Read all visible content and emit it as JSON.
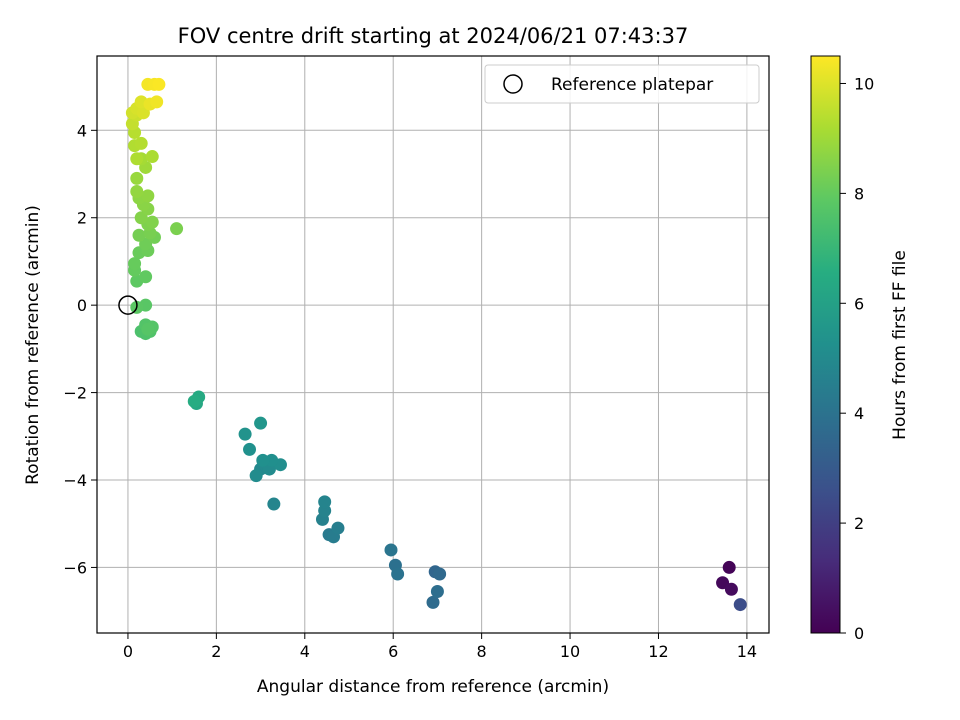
{
  "chart_data": {
    "type": "scatter",
    "title": "FOV centre drift starting at 2024/06/21 07:43:37",
    "xlabel": "Angular distance from reference (arcmin)",
    "ylabel": "Rotation from reference (arcmin)",
    "xlim": [
      -0.7,
      14.5
    ],
    "ylim": [
      -7.5,
      5.7
    ],
    "x_ticks": [
      "0",
      "2",
      "4",
      "6",
      "8",
      "10",
      "12",
      "14"
    ],
    "x_tick_values": [
      0,
      2,
      4,
      6,
      8,
      10,
      12,
      14
    ],
    "y_ticks": [
      "−6",
      "−4",
      "−2",
      "0",
      "2",
      "4"
    ],
    "y_tick_values": [
      -6,
      -4,
      -2,
      0,
      2,
      4
    ],
    "grid": true,
    "legend_position": "top-right",
    "colorbar": {
      "label": "Hours from first FF file",
      "range": [
        0,
        10.5
      ],
      "ticks": [
        "0",
        "2",
        "4",
        "6",
        "8",
        "10"
      ],
      "tick_values": [
        0,
        2,
        4,
        6,
        8,
        10
      ],
      "colormap": "viridis"
    },
    "reference": {
      "name": "Reference platepar",
      "x": 0,
      "y": 0
    },
    "points": [
      [
        13.6,
        -6.0,
        0.1
      ],
      [
        13.45,
        -6.35,
        0.2
      ],
      [
        13.65,
        -6.5,
        0.3
      ],
      [
        13.85,
        -6.85,
        2.5
      ],
      [
        6.95,
        -6.1,
        3.5
      ],
      [
        7.05,
        -6.15,
        3.6
      ],
      [
        6.9,
        -6.8,
        3.7
      ],
      [
        7.0,
        -6.55,
        3.8
      ],
      [
        6.05,
        -5.95,
        3.9
      ],
      [
        6.1,
        -6.15,
        4.0
      ],
      [
        5.95,
        -5.6,
        4.1
      ],
      [
        4.55,
        -5.25,
        4.3
      ],
      [
        4.65,
        -5.3,
        4.4
      ],
      [
        4.75,
        -5.1,
        4.5
      ],
      [
        4.4,
        -4.9,
        4.6
      ],
      [
        4.45,
        -4.7,
        4.7
      ],
      [
        4.45,
        -4.5,
        4.75
      ],
      [
        3.3,
        -4.55,
        4.8
      ],
      [
        3.0,
        -3.75,
        4.9
      ],
      [
        3.1,
        -3.65,
        5.0
      ],
      [
        3.2,
        -3.75,
        5.05
      ],
      [
        2.9,
        -3.9,
        5.1
      ],
      [
        3.45,
        -3.65,
        5.15
      ],
      [
        3.25,
        -3.55,
        5.2
      ],
      [
        3.05,
        -3.55,
        5.25
      ],
      [
        2.75,
        -3.3,
        5.3
      ],
      [
        2.65,
        -2.95,
        5.4
      ],
      [
        3.0,
        -2.7,
        5.5
      ],
      [
        1.55,
        -2.25,
        6.3
      ],
      [
        1.6,
        -2.1,
        6.4
      ],
      [
        1.5,
        -2.2,
        6.5
      ],
      [
        0.3,
        -0.6,
        7.5
      ],
      [
        0.4,
        -0.65,
        7.55
      ],
      [
        0.5,
        -0.6,
        7.6
      ],
      [
        0.4,
        -0.45,
        7.65
      ],
      [
        0.55,
        -0.5,
        7.7
      ],
      [
        0.45,
        -0.55,
        7.75
      ],
      [
        0.4,
        0.0,
        7.8
      ],
      [
        0.2,
        -0.05,
        7.85
      ],
      [
        0.2,
        0.55,
        7.9
      ],
      [
        0.4,
        0.65,
        7.95
      ],
      [
        0.15,
        0.8,
        8.0
      ],
      [
        0.15,
        0.95,
        8.05
      ],
      [
        0.25,
        1.2,
        8.1
      ],
      [
        0.45,
        1.25,
        8.15
      ],
      [
        0.4,
        1.4,
        8.2
      ],
      [
        0.6,
        1.55,
        8.25
      ],
      [
        0.25,
        1.6,
        8.3
      ],
      [
        0.5,
        1.65,
        8.35
      ],
      [
        1.1,
        1.75,
        8.4
      ],
      [
        0.45,
        1.85,
        8.45
      ],
      [
        0.55,
        1.9,
        8.5
      ],
      [
        0.3,
        2.0,
        8.55
      ],
      [
        0.45,
        2.2,
        8.6
      ],
      [
        0.35,
        2.3,
        8.65
      ],
      [
        0.25,
        2.45,
        8.7
      ],
      [
        0.45,
        2.5,
        8.75
      ],
      [
        0.2,
        2.6,
        8.8
      ],
      [
        0.2,
        2.9,
        8.9
      ],
      [
        0.4,
        3.15,
        9.0
      ],
      [
        0.3,
        3.35,
        9.1
      ],
      [
        0.55,
        3.4,
        9.2
      ],
      [
        0.2,
        3.35,
        9.25
      ],
      [
        0.15,
        3.65,
        9.3
      ],
      [
        0.3,
        3.7,
        9.35
      ],
      [
        0.15,
        3.95,
        9.4
      ],
      [
        0.1,
        4.15,
        9.6
      ],
      [
        0.2,
        4.35,
        9.7
      ],
      [
        0.1,
        4.4,
        9.8
      ],
      [
        0.2,
        4.5,
        9.9
      ],
      [
        0.35,
        4.4,
        9.95
      ],
      [
        0.3,
        4.65,
        10.0
      ],
      [
        0.5,
        4.6,
        10.2
      ],
      [
        0.65,
        4.65,
        10.3
      ],
      [
        0.45,
        5.05,
        10.35
      ],
      [
        0.6,
        5.05,
        10.4
      ],
      [
        0.7,
        5.05,
        10.45
      ]
    ]
  }
}
